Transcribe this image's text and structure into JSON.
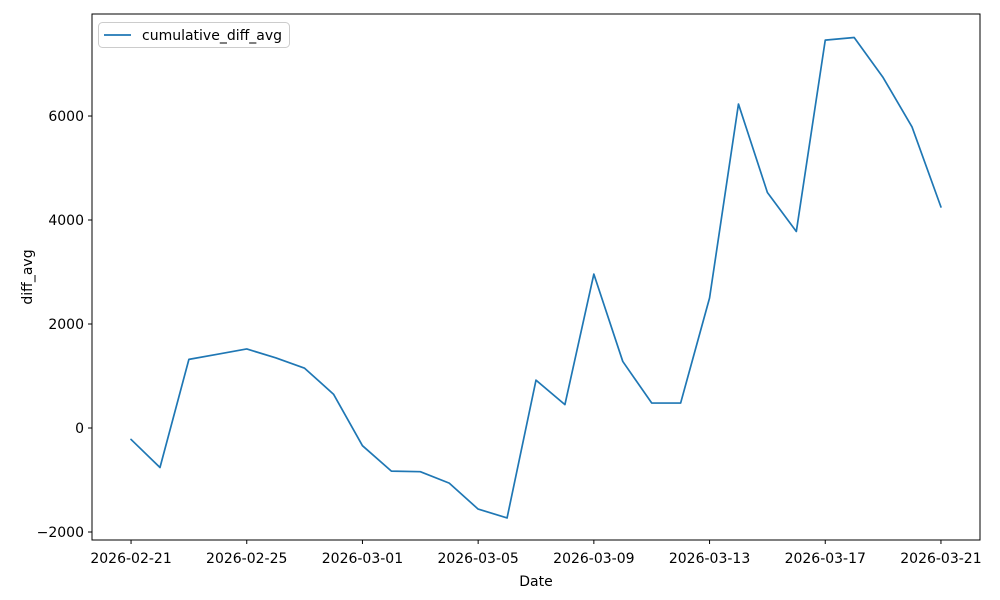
{
  "figure": {
    "background_color": "#ffffff",
    "axis_color": "#000000"
  },
  "chart_data": {
    "type": "line",
    "title": "",
    "xlabel": "Date",
    "ylabel": "diff_avg",
    "grid": false,
    "legend_position": "upper left",
    "series": [
      {
        "name": "cumulative_diff_avg",
        "color": "#1f77b4",
        "x": [
          "2026-02-21",
          "2026-02-22",
          "2026-02-23",
          "2026-02-24",
          "2026-02-25",
          "2026-02-26",
          "2026-02-27",
          "2026-02-28",
          "2026-03-01",
          "2026-03-02",
          "2026-03-03",
          "2026-03-04",
          "2026-03-05",
          "2026-03-06",
          "2026-03-07",
          "2026-03-08",
          "2026-03-09",
          "2026-03-10",
          "2026-03-11",
          "2026-03-12",
          "2026-03-13",
          "2026-03-14",
          "2026-03-15",
          "2026-03-16",
          "2026-03-17",
          "2026-03-18",
          "2026-03-19",
          "2026-03-20",
          "2026-03-21"
        ],
        "values": [
          -220,
          -760,
          1320,
          1420,
          1520,
          1350,
          1150,
          650,
          -340,
          -830,
          -840,
          -1060,
          -1560,
          -1730,
          920,
          450,
          2960,
          1280,
          480,
          480,
          2500,
          6230,
          4530,
          3780,
          7460,
          7510,
          6740,
          5790,
          4250
        ]
      }
    ],
    "x_ticks": [
      "2026-02-21",
      "2026-02-25",
      "2026-03-01",
      "2026-03-05",
      "2026-03-09",
      "2026-03-13",
      "2026-03-17",
      "2026-03-21"
    ],
    "y_ticks": [
      -2000,
      0,
      2000,
      4000,
      6000
    ],
    "xlim_days_from_first_point": [
      -1.35,
      29.35
    ],
    "ylim": [
      -2154,
      7962
    ]
  }
}
